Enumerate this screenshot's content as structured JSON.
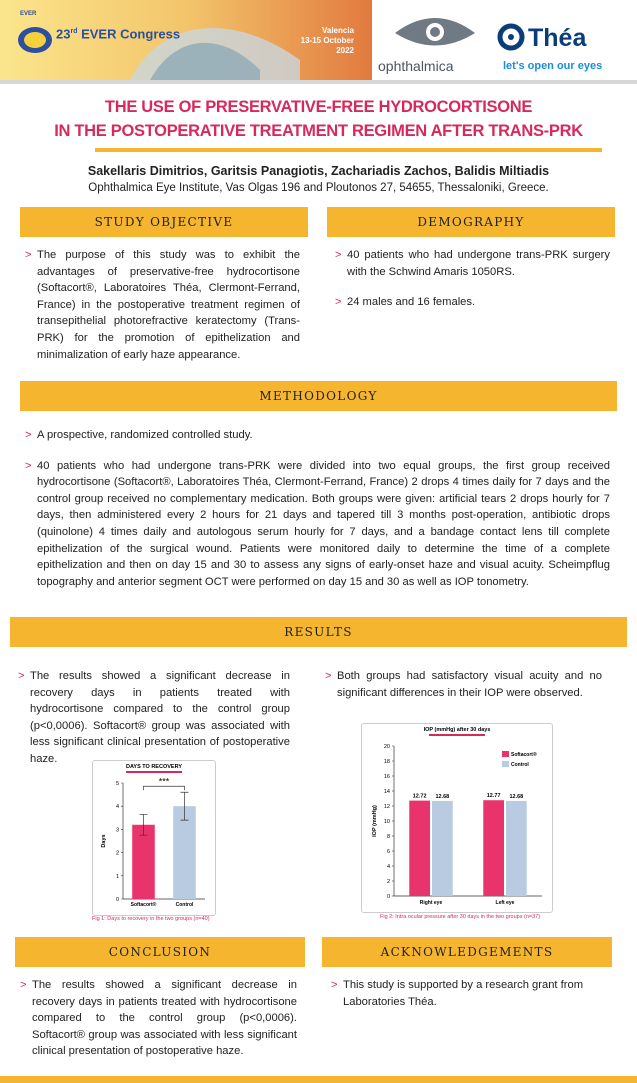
{
  "header": {
    "edition": "23",
    "edition_suffix": "rd",
    "congress": "EVER Congress",
    "logo_text": "EVER",
    "city": "Valencia",
    "dates": "13-15 October",
    "year": "2022",
    "sponsor_1": "ophthalmica",
    "sponsor_2": "Théa",
    "sponsor_2_tagline": "let's open our eyes"
  },
  "title_lines": [
    "THE USE OF PRESERVATIVE-FREE HYDROCORTISONE",
    "IN THE POSTOPERATIVE TREATMENT REGIMEN AFTER TRANS-PRK"
  ],
  "authors": "Sakellaris Dimitrios, Garitsis Panagiotis, Zachariadis Zachos, Balidis Miltiadis",
  "affiliation": "Ophthalmica Eye Institute, Vas Olgas 196 and Ploutonos 27, 54655, Thessaloniki, Greece.",
  "study_objective": {
    "heading": "STUDY OBJECTIVE",
    "items": [
      "The purpose of this study was to exhibit the advantages of preservative-free hydrocortisone (Softacort®, Laboratoires Théa, Clermont-Ferrand, France) in the postoperative treatment regimen of transepithelial photorefractive keratectomy (Trans-PRK) for the promotion of epithelization and minimalization of early haze appearance."
    ]
  },
  "demography": {
    "heading": "DEMOGRAPHY",
    "items": [
      "40 patients who had undergone trans-PRK surgery with the Schwind Amaris 1050RS.",
      "24 males and 16 females."
    ]
  },
  "methodology": {
    "heading": "METHODOLOGY",
    "items": [
      "A prospective, randomized controlled study.",
      "40 patients who had undergone trans-PRK were divided into two equal groups, the first group received hydrocortisone (Softacort®, Laboratoires Théa, Clermont-Ferrand, France) 2 drops 4 times daily for 7 days and the control group received no complementary medication. Both groups were given: artificial tears 2 drops hourly for 7 days, then administered every 2 hours for 21 days and tapered till 3 months post-operation, antibiotic drops (quinolone) 4 times daily and autologous serum hourly for 7 days, and a bandage contact lens till complete epithelization of the surgical wound. Patients were monitored daily to determine the time of a complete epithelization and then on day 15 and 30 to assess any signs of early-onset haze and visual acuity. Scheimpflug topography and anterior segment OCT were performed on day 15 and 30 as well as IOP tonometry."
    ]
  },
  "results": {
    "heading": "RESULTS",
    "left_items": [
      "The results showed a significant decrease in recovery days in patients treated with hydrocortisone compared to the control group (p<0,0006). Softacort® group was associated with less significant clinical presentation of postoperative haze."
    ],
    "right_items": [
      "Both groups had satisfactory visual acuity and no significant differences in their IOP were observed."
    ]
  },
  "chart_data": [
    {
      "type": "bar",
      "title": "DAYS TO RECOVERY",
      "y_label": "Days",
      "categories": [
        "Softacort®",
        "Control"
      ],
      "values": [
        3.2,
        4.0
      ],
      "errors": [
        0.45,
        0.6
      ],
      "colors": [
        "#e8336d",
        "#b8cbe0"
      ],
      "annotation": "***",
      "ylim": [
        0,
        5
      ],
      "yticks": [
        0,
        1,
        2,
        3,
        4,
        5
      ],
      "caption": "Fig 1: Days to recovery in the two groups (n=40)"
    },
    {
      "type": "grouped-bar",
      "title": "IOP (mmHg) after 30 days",
      "y_label": "IOP (mmHg)",
      "categories": [
        "Right eye",
        "Left eye"
      ],
      "series": [
        {
          "name": "Softacort®",
          "color": "#e8336d",
          "values": [
            12.72,
            12.77
          ]
        },
        {
          "name": "Control",
          "color": "#b8cbe0",
          "values": [
            12.68,
            12.68
          ]
        }
      ],
      "ylim": [
        0,
        20
      ],
      "yticks": [
        0,
        2,
        4,
        6,
        8,
        10,
        12,
        14,
        16,
        18,
        20
      ],
      "caption": "Fig 2: Intra ocular pressure after 30 days in the two groups (n=37)"
    }
  ],
  "conclusion": {
    "heading": "CONCLUSION",
    "items": [
      "The results showed a significant decrease in recovery days in patients treated with hydrocortisone compared to the control group (p<0,0006). Softacort® group was associated with less significant clinical presentation of postoperative haze."
    ]
  },
  "acknowledgements": {
    "heading": "ACKNOWLEDGEMENTS",
    "items": [
      "This study is supported by a research grant from Laboratories Théa."
    ]
  }
}
